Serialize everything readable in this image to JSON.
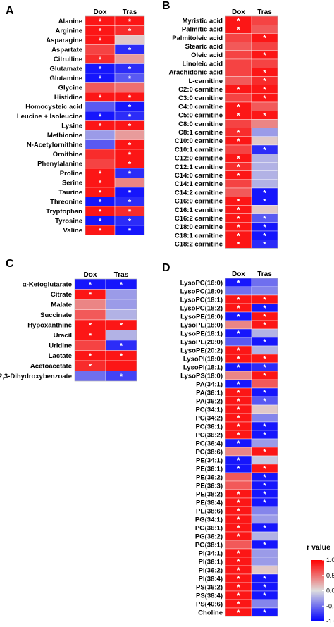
{
  "colors": {
    "low": "#0000ff",
    "mid": "#dedede",
    "high": "#ff0000"
  },
  "legend": {
    "title": "r value",
    "ticks": [
      1.0,
      0.5,
      0.0,
      -0.5,
      -1.0
    ],
    "tick_labels": [
      "1.0",
      "0.5",
      "0.0",
      "-0.5",
      "-1.0"
    ],
    "range": [
      -1.0,
      1.0
    ]
  },
  "chart_data": [
    {
      "type": "heatmap",
      "panel": "A",
      "columns": [
        "Dox",
        "Tras"
      ],
      "rows": [
        "Alanine",
        "Arginine",
        "Asparagine",
        "Aspartate",
        "Citrulline",
        "Glutamate",
        "Glutamine",
        "Glycine",
        "Histidine",
        "Homocysteic acid",
        "Leucine + Isoleucine",
        "Lysine",
        "Methionine",
        "N-Acetylornithine",
        "Ornithine",
        "Phenylalanine",
        "Proline",
        "Serine",
        "Taurine",
        "Threonine",
        "Tryptophan",
        "Tyrosine",
        "Valine"
      ],
      "values": [
        [
          0.9,
          0.9
        ],
        [
          0.9,
          0.8
        ],
        [
          0.9,
          0.1
        ],
        [
          0.7,
          -0.8
        ],
        [
          0.8,
          0.3
        ],
        [
          -0.9,
          -0.8
        ],
        [
          -0.9,
          -0.6
        ],
        [
          0.6,
          0.5
        ],
        [
          0.9,
          0.9
        ],
        [
          -0.6,
          -0.9
        ],
        [
          -0.9,
          -0.8
        ],
        [
          0.9,
          0.9
        ],
        [
          -0.3,
          0.3
        ],
        [
          -0.6,
          0.9
        ],
        [
          0.8,
          0.9
        ],
        [
          0.7,
          0.9
        ],
        [
          0.9,
          -0.8
        ],
        [
          0.9,
          0.4
        ],
        [
          0.9,
          -0.9
        ],
        [
          -0.9,
          -0.8
        ],
        [
          0.9,
          0.8
        ],
        [
          -0.9,
          -0.8
        ],
        [
          0.9,
          -0.9
        ]
      ],
      "stars": [
        [
          1,
          1
        ],
        [
          1,
          1
        ],
        [
          1,
          0
        ],
        [
          0,
          1
        ],
        [
          1,
          0
        ],
        [
          1,
          1
        ],
        [
          1,
          1
        ],
        [
          0,
          0
        ],
        [
          1,
          1
        ],
        [
          0,
          1
        ],
        [
          1,
          1
        ],
        [
          1,
          1
        ],
        [
          0,
          0
        ],
        [
          0,
          1
        ],
        [
          0,
          1
        ],
        [
          0,
          1
        ],
        [
          1,
          1
        ],
        [
          1,
          0
        ],
        [
          1,
          1
        ],
        [
          1,
          1
        ],
        [
          1,
          1
        ],
        [
          1,
          1
        ],
        [
          1,
          1
        ]
      ]
    },
    {
      "type": "heatmap",
      "panel": "B",
      "columns": [
        "Dox",
        "Tras"
      ],
      "rows": [
        "Myristic acid",
        "Palmitic acid",
        "Palmitoleic acid",
        "Stearic acid",
        "Oleic acid",
        "Linoleic acid",
        "Arachidonic acid",
        "L-carnitine",
        "C2:0 carnitine",
        "C3:0 carnitine",
        "C4:0 carnitine",
        "C5:0 carnitine",
        "C8:0 carnitine",
        "C8:1 carnitine",
        "C10:0 carnitine",
        "C10:1 carnitine",
        "C12:0 carnitine",
        "C12:1 carnitine",
        "C14:0 carnitine",
        "C14:1 carnitine",
        "C14:2 carnitine",
        "C16:0 carnitine",
        "C16:1 carnitine",
        "C16:2 carnitine",
        "C18:0 carnitine",
        "C18:1 carnitine",
        "C18:2 carnitine"
      ],
      "values": [
        [
          0.9,
          0.7
        ],
        [
          0.9,
          0.6
        ],
        [
          0.7,
          0.9
        ],
        [
          0.6,
          0.7
        ],
        [
          0.7,
          0.9
        ],
        [
          0.7,
          0.7
        ],
        [
          0.7,
          0.9
        ],
        [
          0.6,
          0.8
        ],
        [
          0.9,
          0.9
        ],
        [
          0.7,
          0.9
        ],
        [
          0.9,
          0.6
        ],
        [
          0.9,
          0.9
        ],
        [
          0.7,
          0.4
        ],
        [
          0.8,
          -0.3
        ],
        [
          0.9,
          0.1
        ],
        [
          0.7,
          -0.8
        ],
        [
          0.9,
          -0.2
        ],
        [
          0.8,
          -0.2
        ],
        [
          0.9,
          -0.2
        ],
        [
          0.7,
          -0.2
        ],
        [
          0.6,
          -0.9
        ],
        [
          0.9,
          -0.9
        ],
        [
          0.9,
          0.1
        ],
        [
          0.9,
          -0.6
        ],
        [
          0.9,
          -0.9
        ],
        [
          0.9,
          -0.9
        ],
        [
          0.9,
          -0.8
        ]
      ],
      "stars": [
        [
          1,
          0
        ],
        [
          1,
          0
        ],
        [
          0,
          1
        ],
        [
          0,
          0
        ],
        [
          0,
          1
        ],
        [
          0,
          0
        ],
        [
          0,
          1
        ],
        [
          0,
          1
        ],
        [
          1,
          1
        ],
        [
          0,
          1
        ],
        [
          1,
          0
        ],
        [
          1,
          1
        ],
        [
          0,
          0
        ],
        [
          1,
          0
        ],
        [
          1,
          0
        ],
        [
          0,
          1
        ],
        [
          1,
          0
        ],
        [
          1,
          0
        ],
        [
          1,
          0
        ],
        [
          0,
          0
        ],
        [
          0,
          1
        ],
        [
          1,
          1
        ],
        [
          1,
          0
        ],
        [
          1,
          1
        ],
        [
          1,
          1
        ],
        [
          1,
          1
        ],
        [
          1,
          1
        ]
      ]
    },
    {
      "type": "heatmap",
      "panel": "C",
      "columns": [
        "Dox",
        "Tras"
      ],
      "rows": [
        "α-Ketoglutarate",
        "Citrate",
        "Malate",
        "Succinate",
        "Hypoxanthine",
        "Uracil",
        "Uridine",
        "Lactate",
        "Acetoacetate",
        "2,3-Dihydroxybenzoate"
      ],
      "values": [
        [
          -0.9,
          -0.9
        ],
        [
          0.9,
          -0.3
        ],
        [
          0.4,
          -0.3
        ],
        [
          0.6,
          -0.2
        ],
        [
          0.9,
          0.9
        ],
        [
          0.9,
          -0.2
        ],
        [
          0.7,
          -0.8
        ],
        [
          0.9,
          0.9
        ],
        [
          0.8,
          0.9
        ],
        [
          -0.5,
          -0.7
        ]
      ],
      "stars": [
        [
          1,
          1
        ],
        [
          1,
          0
        ],
        [
          0,
          0
        ],
        [
          0,
          0
        ],
        [
          1,
          1
        ],
        [
          1,
          0
        ],
        [
          0,
          1
        ],
        [
          1,
          1
        ],
        [
          1,
          0
        ],
        [
          0,
          1
        ]
      ]
    },
    {
      "type": "heatmap",
      "panel": "D",
      "columns": [
        "Dox",
        "Tras"
      ],
      "rows": [
        "LysoPC(16:0)",
        "LysoPC(18:0)",
        "LysoPC(18:1)",
        "LysoPC(18:2)",
        "LysoPE(16:0)",
        "LysoPE(18:0)",
        "LysoPE(18:1)",
        "LysoPE(20:0)",
        "LysoPE(20:2)",
        "LysoPI(18:0)",
        "LysoPI(18:1)",
        "LysoPS(18:0)",
        "PA(34:1)",
        "PA(36:1)",
        "PA(36:2)",
        "PC(34:1)",
        "PC(34:2)",
        "PC(36:1)",
        "PC(36:2)",
        "PC(36:4)",
        "PC(38:6)",
        "PE(34:1)",
        "PE(36:1)",
        "PE(36:2)",
        "PE(36:3)",
        "PE(38:2)",
        "PE(38:4)",
        "PE(38:6)",
        "PG(34:1)",
        "PG(36:1)",
        "PG(36:2)",
        "PG(38:1)",
        "PI(34:1)",
        "PI(36:1)",
        "PI(36:2)",
        "PI(38:4)",
        "PS(36:2)",
        "PS(38:4)",
        "PS(40:6)",
        "Choline"
      ],
      "values": [
        [
          -0.9,
          -0.5
        ],
        [
          -0.5,
          -0.4
        ],
        [
          0.9,
          0.9
        ],
        [
          0.9,
          -0.9
        ],
        [
          -0.9,
          0.9
        ],
        [
          0.4,
          0.9
        ],
        [
          -0.9,
          -0.2
        ],
        [
          -0.6,
          -0.9
        ],
        [
          0.9,
          -0.2
        ],
        [
          0.9,
          0.9
        ],
        [
          -0.9,
          -0.8
        ],
        [
          0.4,
          0.9
        ],
        [
          -0.9,
          0.6
        ],
        [
          0.9,
          -0.9
        ],
        [
          0.9,
          -0.6
        ],
        [
          0.9,
          0.1
        ],
        [
          0.9,
          -0.4
        ],
        [
          0.9,
          -0.9
        ],
        [
          0.9,
          -0.9
        ],
        [
          -0.9,
          -0.3
        ],
        [
          0.4,
          0.9
        ],
        [
          -0.9,
          -0.1
        ],
        [
          -0.9,
          0.9
        ],
        [
          0.6,
          -0.9
        ],
        [
          0.6,
          -0.9
        ],
        [
          0.9,
          -0.9
        ],
        [
          0.9,
          -0.9
        ],
        [
          0.9,
          -0.4
        ],
        [
          0.9,
          -0.3
        ],
        [
          0.9,
          -0.9
        ],
        [
          0.9,
          -0.2
        ],
        [
          0.6,
          -0.9
        ],
        [
          0.9,
          -0.3
        ],
        [
          0.9,
          -0.3
        ],
        [
          0.9,
          0.1
        ],
        [
          0.9,
          -0.9
        ],
        [
          0.9,
          -0.9
        ],
        [
          0.9,
          -0.9
        ],
        [
          0.9,
          -0.4
        ],
        [
          0.9,
          -0.9
        ]
      ],
      "stars": [
        [
          1,
          0
        ],
        [
          0,
          0
        ],
        [
          1,
          1
        ],
        [
          1,
          1
        ],
        [
          1,
          1
        ],
        [
          0,
          1
        ],
        [
          1,
          0
        ],
        [
          0,
          1
        ],
        [
          1,
          0
        ],
        [
          1,
          1
        ],
        [
          1,
          1
        ],
        [
          0,
          1
        ],
        [
          1,
          0
        ],
        [
          1,
          1
        ],
        [
          1,
          1
        ],
        [
          1,
          0
        ],
        [
          1,
          0
        ],
        [
          1,
          1
        ],
        [
          1,
          1
        ],
        [
          1,
          0
        ],
        [
          0,
          1
        ],
        [
          1,
          0
        ],
        [
          1,
          1
        ],
        [
          0,
          1
        ],
        [
          0,
          1
        ],
        [
          1,
          1
        ],
        [
          1,
          1
        ],
        [
          1,
          0
        ],
        [
          1,
          0
        ],
        [
          1,
          1
        ],
        [
          1,
          0
        ],
        [
          0,
          1
        ],
        [
          1,
          0
        ],
        [
          1,
          0
        ],
        [
          1,
          0
        ],
        [
          1,
          1
        ],
        [
          1,
          1
        ],
        [
          1,
          1
        ],
        [
          1,
          0
        ],
        [
          1,
          1
        ]
      ]
    }
  ]
}
